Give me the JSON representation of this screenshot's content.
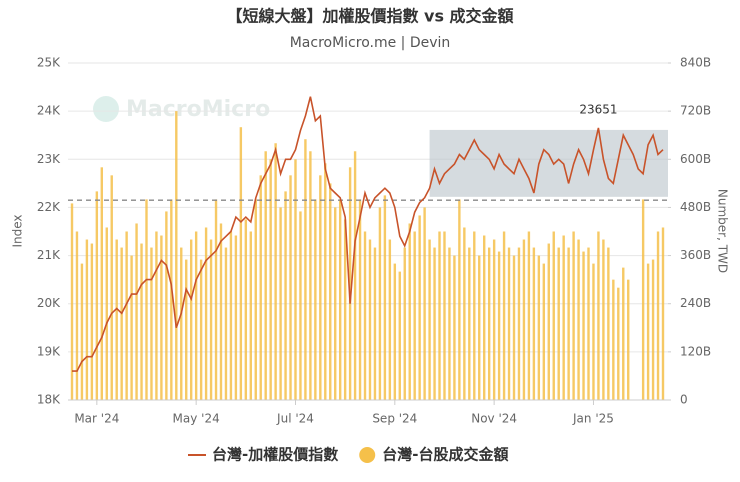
{
  "chart_data": {
    "type": "combo",
    "title": "【短線大盤】加權股價指數 vs 成交金額",
    "subtitle": "MacroMicro.me | Devin",
    "watermark": "MacroMicro",
    "ylabel": "Index",
    "y2label": "Number, TWD",
    "categories": [
      null,
      null,
      null,
      null,
      null,
      "Mar '24",
      null,
      null,
      null,
      null,
      null,
      null,
      null,
      null,
      null,
      null,
      null,
      null,
      null,
      null,
      null,
      null,
      null,
      null,
      null,
      "May '24",
      null,
      null,
      null,
      null,
      null,
      null,
      null,
      null,
      null,
      null,
      null,
      null,
      null,
      null,
      null,
      null,
      null,
      null,
      null,
      "Jul '24",
      null,
      null,
      null,
      null,
      null,
      null,
      null,
      null,
      null,
      null,
      null,
      null,
      null,
      null,
      null,
      null,
      null,
      null,
      null,
      "Sep '24",
      null,
      null,
      null,
      null,
      null,
      null,
      null,
      null,
      null,
      null,
      null,
      null,
      null,
      null,
      null,
      null,
      null,
      null,
      null,
      "Nov '24",
      null,
      null,
      null,
      null,
      null,
      null,
      null,
      null,
      null,
      null,
      null,
      null,
      null,
      null,
      null,
      null,
      null,
      null,
      null,
      "Jan '25",
      null,
      null,
      null,
      null,
      null,
      null,
      null,
      null,
      null,
      null,
      null,
      null,
      null,
      null
    ],
    "series": [
      {
        "name": "台灣-加權股價指數",
        "type": "line",
        "color": "#c8532a",
        "values": [
          18600,
          18600,
          18800,
          18900,
          18900,
          19100,
          19300,
          19600,
          19800,
          19900,
          19800,
          20000,
          20200,
          20200,
          20400,
          20500,
          20500,
          20700,
          20900,
          20800,
          20400,
          19500,
          19800,
          20300,
          20100,
          20500,
          20700,
          20900,
          21000,
          21100,
          21300,
          21400,
          21500,
          21800,
          21700,
          21800,
          21700,
          22200,
          22500,
          22700,
          22900,
          23200,
          22700,
          23000,
          23000,
          23200,
          23600,
          23900,
          24300,
          23800,
          23900,
          22800,
          22400,
          22300,
          22200,
          21800,
          20000,
          21300,
          21800,
          22300,
          22000,
          22200,
          22300,
          22400,
          22300,
          22000,
          21400,
          21200,
          21500,
          21900,
          22100,
          22200,
          22400,
          22800,
          22500,
          22700,
          22800,
          22900,
          23100,
          23000,
          23200,
          23400,
          23200,
          23100,
          23000,
          22800,
          23100,
          22900,
          22800,
          22700,
          23000,
          22800,
          22600,
          22300,
          22900,
          23200,
          23100,
          22900,
          23000,
          22900,
          22500,
          22900,
          23200,
          23000,
          22700,
          23200,
          23651,
          23000,
          22600,
          22500,
          23000,
          23500,
          23300,
          23100,
          22800,
          22700,
          23300,
          23500,
          23100,
          23200
        ]
      },
      {
        "name": "台灣-台股成交金額",
        "type": "bar",
        "axis": "y2",
        "color": "#f5c04a",
        "values": [
          490,
          420,
          340,
          400,
          390,
          520,
          580,
          430,
          560,
          400,
          380,
          420,
          360,
          440,
          390,
          500,
          380,
          420,
          410,
          470,
          500,
          720,
          380,
          350,
          400,
          420,
          350,
          430,
          400,
          500,
          440,
          380,
          420,
          410,
          680,
          450,
          420,
          500,
          560,
          620,
          600,
          640,
          480,
          520,
          560,
          600,
          470,
          650,
          620,
          500,
          560,
          590,
          540,
          480,
          500,
          450,
          580,
          620,
          500,
          420,
          400,
          380,
          480,
          510,
          400,
          340,
          320,
          380,
          440,
          420,
          460,
          480,
          400,
          380,
          420,
          420,
          380,
          360,
          500,
          430,
          380,
          420,
          360,
          410,
          380,
          400,
          370,
          420,
          380,
          360,
          380,
          400,
          420,
          380,
          360,
          340,
          390,
          420,
          380,
          410,
          380,
          420,
          400,
          370,
          380,
          340,
          420,
          400,
          380,
          300,
          280,
          330,
          300,
          null,
          null,
          500,
          340,
          350,
          420,
          430
        ]
      }
    ],
    "annotated_point": 106,
    "highlight": {
      "from": 72,
      "range": [
        22220,
        23610
      ],
      "color": "#b9c3c9"
    },
    "reference_line": 22150,
    "ylim": [
      18000,
      25000
    ],
    "yticks": [
      {
        "value": 18000,
        "label": "18K"
      },
      {
        "value": 19000,
        "label": "19K"
      },
      {
        "value": 20000,
        "label": "20K"
      },
      {
        "value": 21000,
        "label": "21K"
      },
      {
        "value": 22000,
        "label": "22K"
      },
      {
        "value": 23000,
        "label": "23K"
      },
      {
        "value": 24000,
        "label": "24K"
      },
      {
        "value": 25000,
        "label": "25K"
      }
    ],
    "y2lim": [
      0,
      840
    ],
    "y2ticks": [
      0,
      {
        "value": 120,
        "label": "120B"
      },
      {
        "value": 240,
        "label": "240B"
      },
      {
        "value": 360,
        "label": "360B"
      },
      {
        "value": 480,
        "label": "480B"
      },
      {
        "value": 600,
        "label": "600B"
      },
      {
        "value": 720,
        "label": "720B"
      },
      {
        "value": 840,
        "label": "840B"
      }
    ],
    "grid": true
  }
}
